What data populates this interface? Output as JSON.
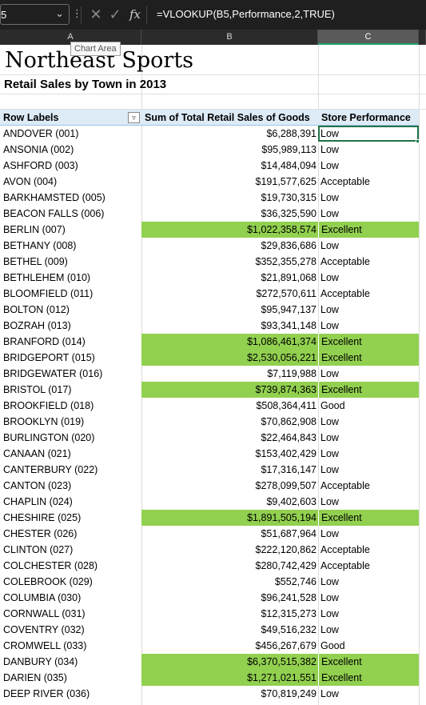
{
  "formula_bar": {
    "name_box": "5",
    "formula": "=VLOOKUP(B5,Performance,2,TRUE)",
    "fx_label": "fx"
  },
  "columns": [
    "A",
    "B",
    "C"
  ],
  "tooltip": "Chart Area",
  "report": {
    "title": "Northeast Sports",
    "subtitle": "Retail Sales by Town in 2013"
  },
  "pivot": {
    "headers": {
      "row_labels": "Row Labels",
      "sum": "Sum of Total Retail Sales of Goods",
      "performance": "Store Performance"
    },
    "highlight_color": "#92d050",
    "rows": [
      {
        "town": "ANDOVER (001)",
        "sales": "$6,288,391",
        "perf": "Low"
      },
      {
        "town": "ANSONIA (002)",
        "sales": "$95,989,113",
        "perf": "Low"
      },
      {
        "town": "ASHFORD (003)",
        "sales": "$14,484,094",
        "perf": "Low"
      },
      {
        "town": "AVON (004)",
        "sales": "$191,577,625",
        "perf": "Acceptable"
      },
      {
        "town": "BARKHAMSTED (005)",
        "sales": "$19,730,315",
        "perf": "Low"
      },
      {
        "town": "BEACON FALLS (006)",
        "sales": "$36,325,590",
        "perf": "Low"
      },
      {
        "town": "BERLIN (007)",
        "sales": "$1,022,358,574",
        "perf": "Excellent"
      },
      {
        "town": "BETHANY (008)",
        "sales": "$29,836,686",
        "perf": "Low"
      },
      {
        "town": "BETHEL (009)",
        "sales": "$352,355,278",
        "perf": "Acceptable"
      },
      {
        "town": "BETHLEHEM (010)",
        "sales": "$21,891,068",
        "perf": "Low"
      },
      {
        "town": "BLOOMFIELD (011)",
        "sales": "$272,570,611",
        "perf": "Acceptable"
      },
      {
        "town": "BOLTON (012)",
        "sales": "$95,947,137",
        "perf": "Low"
      },
      {
        "town": "BOZRAH (013)",
        "sales": "$93,341,148",
        "perf": "Low"
      },
      {
        "town": "BRANFORD (014)",
        "sales": "$1,086,461,374",
        "perf": "Excellent"
      },
      {
        "town": "BRIDGEPORT (015)",
        "sales": "$2,530,056,221",
        "perf": "Excellent"
      },
      {
        "town": "BRIDGEWATER (016)",
        "sales": "$7,119,988",
        "perf": "Low"
      },
      {
        "town": "BRISTOL (017)",
        "sales": "$739,874,363",
        "perf": "Excellent"
      },
      {
        "town": "BROOKFIELD (018)",
        "sales": "$508,364,411",
        "perf": "Good"
      },
      {
        "town": "BROOKLYN (019)",
        "sales": "$70,862,908",
        "perf": "Low"
      },
      {
        "town": "BURLINGTON (020)",
        "sales": "$22,464,843",
        "perf": "Low"
      },
      {
        "town": "CANAAN (021)",
        "sales": "$153,402,429",
        "perf": "Low"
      },
      {
        "town": "CANTERBURY (022)",
        "sales": "$17,316,147",
        "perf": "Low"
      },
      {
        "town": "CANTON (023)",
        "sales": "$278,099,507",
        "perf": "Acceptable"
      },
      {
        "town": "CHAPLIN (024)",
        "sales": "$9,402,603",
        "perf": "Low"
      },
      {
        "town": "CHESHIRE (025)",
        "sales": "$1,891,505,194",
        "perf": "Excellent"
      },
      {
        "town": "CHESTER (026)",
        "sales": "$51,687,964",
        "perf": "Low"
      },
      {
        "town": "CLINTON (027)",
        "sales": "$222,120,862",
        "perf": "Acceptable"
      },
      {
        "town": "COLCHESTER (028)",
        "sales": "$280,742,429",
        "perf": "Acceptable"
      },
      {
        "town": "COLEBROOK (029)",
        "sales": "$552,746",
        "perf": "Low"
      },
      {
        "town": "COLUMBIA (030)",
        "sales": "$96,241,528",
        "perf": "Low"
      },
      {
        "town": "CORNWALL (031)",
        "sales": "$12,315,273",
        "perf": "Low"
      },
      {
        "town": "COVENTRY (032)",
        "sales": "$49,516,232",
        "perf": "Low"
      },
      {
        "town": "CROMWELL (033)",
        "sales": "$456,267,679",
        "perf": "Good"
      },
      {
        "town": "DANBURY (034)",
        "sales": "$6,370,515,382",
        "perf": "Excellent"
      },
      {
        "town": "DARIEN (035)",
        "sales": "$1,271,021,551",
        "perf": "Excellent"
      },
      {
        "town": "DEEP RIVER (036)",
        "sales": "$70,819,249",
        "perf": "Low"
      }
    ]
  }
}
